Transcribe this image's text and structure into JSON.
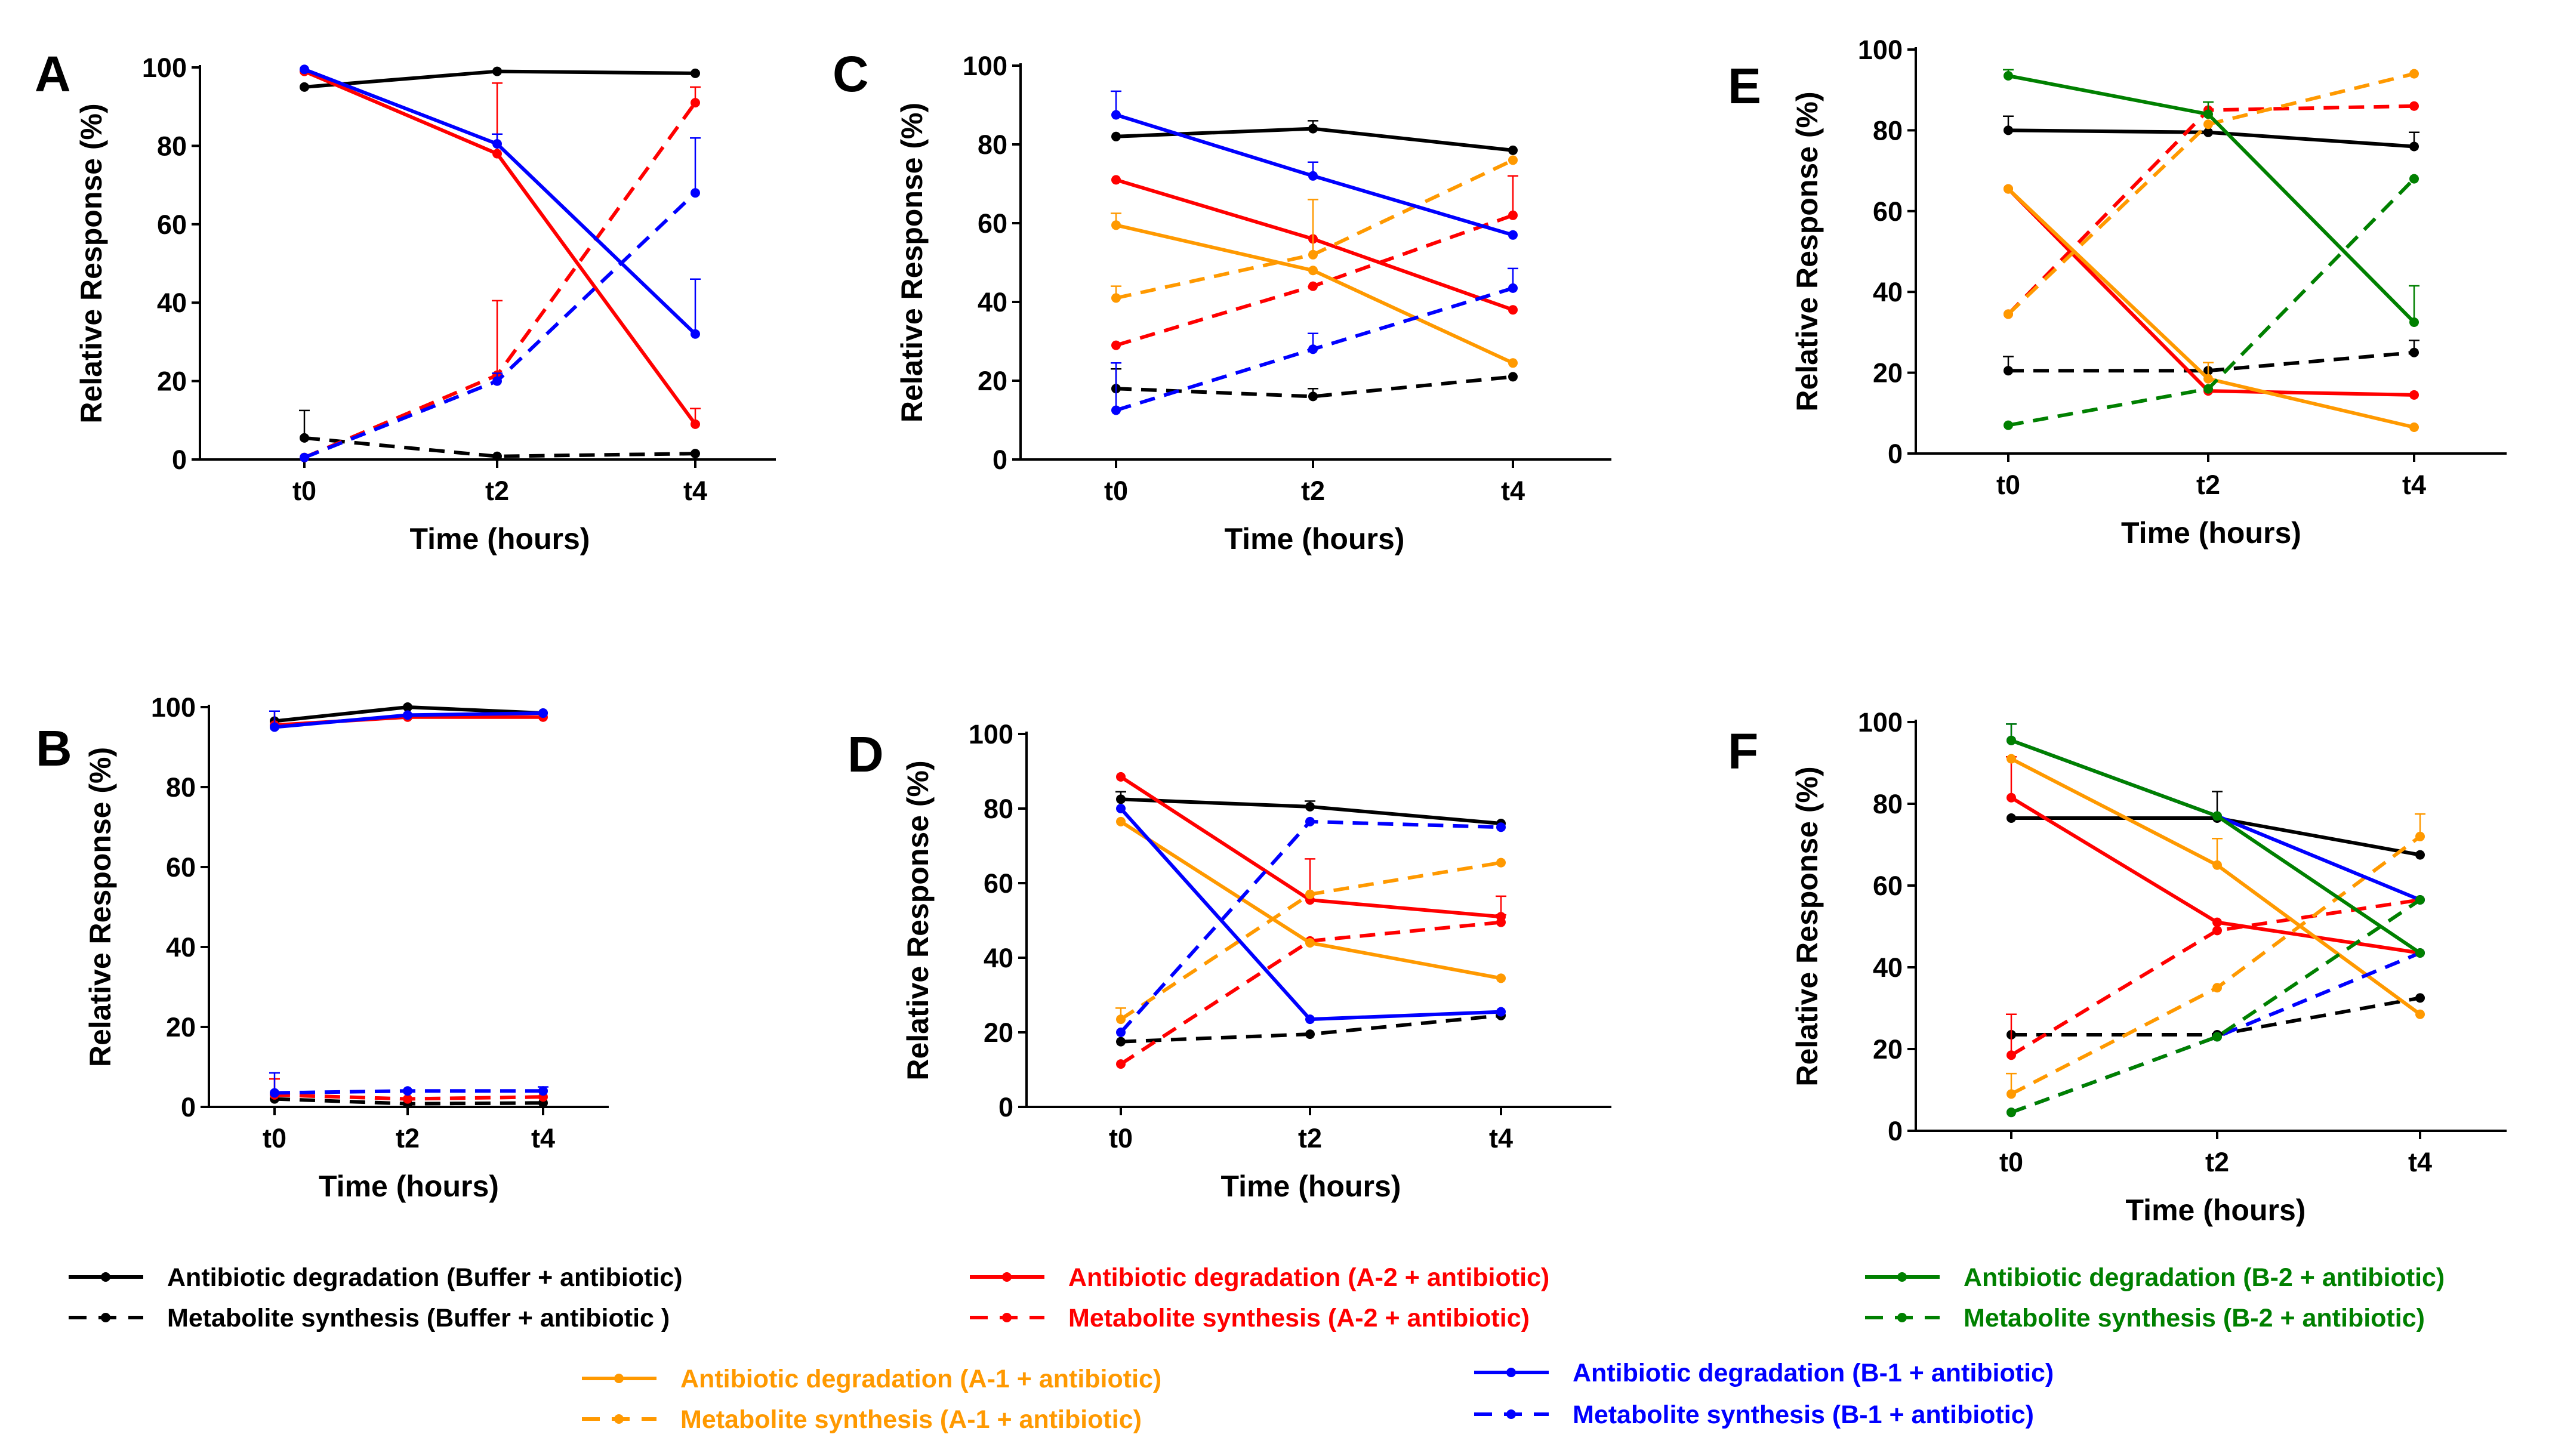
{
  "figure": {
    "legend": [
      {
        "series": "buf_deg",
        "label": "Antibiotic degradation (Buffer + antibiotic)",
        "color": "#000000",
        "dashed": false
      },
      {
        "series": "buf_met",
        "label": "Metabolite synthesis (Buffer + antibiotic )",
        "color": "#000000",
        "dashed": true
      },
      {
        "series": "a2_deg",
        "label": "Antibiotic degradation (A-2 + antibiotic)",
        "color": "#ff0000",
        "dashed": false
      },
      {
        "series": "a2_met",
        "label": "Metabolite synthesis (A-2 + antibiotic)",
        "color": "#ff0000",
        "dashed": true
      },
      {
        "series": "b2_deg",
        "label": "Antibiotic degradation (B-2 + antibiotic)",
        "color": "#008000",
        "dashed": false
      },
      {
        "series": "b2_met",
        "label": "Metabolite synthesis (B-2 + antibiotic)",
        "color": "#008000",
        "dashed": true
      },
      {
        "series": "a1_deg",
        "label": "Antibiotic degradation (A-1 + antibiotic)",
        "color": "#ff9900",
        "dashed": false
      },
      {
        "series": "a1_met",
        "label": "Metabolite synthesis (A-1 + antibiotic)",
        "color": "#ff9900",
        "dashed": true
      },
      {
        "series": "b1_deg",
        "label": "Antibiotic degradation (B-1 + antibiotic)",
        "color": "#0000ff",
        "dashed": false
      },
      {
        "series": "b1_met",
        "label": "Metabolite synthesis (B-1 + antibiotic)",
        "color": "#0000ff",
        "dashed": true
      }
    ]
  },
  "chart_data": [
    {
      "panel": "A",
      "type": "line",
      "categories": [
        "t0",
        "t2",
        "t4"
      ],
      "xlabel": "Time (hours)",
      "ylabel": "Relative Response (%)",
      "ylim": [
        0,
        100
      ],
      "yticks": [
        "0",
        "20",
        "40",
        "60",
        "80",
        "100"
      ],
      "series": [
        {
          "key": "buf_deg",
          "color": "#000000",
          "dashed": false,
          "values": [
            95,
            99,
            98.5
          ],
          "errors": [
            0,
            0,
            0
          ]
        },
        {
          "key": "buf_met",
          "color": "#000000",
          "dashed": true,
          "values": [
            5.5,
            0.8,
            1.5
          ],
          "errors": [
            7,
            0,
            0
          ]
        },
        {
          "key": "a2_deg",
          "color": "#ff0000",
          "dashed": false,
          "values": [
            99,
            78,
            9
          ],
          "errors": [
            0,
            18,
            4
          ]
        },
        {
          "key": "a2_met",
          "color": "#ff0000",
          "dashed": true,
          "values": [
            0.5,
            21.5,
            91
          ],
          "errors": [
            0,
            19,
            4
          ]
        },
        {
          "key": "b1_deg",
          "color": "#0000ff",
          "dashed": false,
          "values": [
            99.5,
            80.5,
            32
          ],
          "errors": [
            0,
            2.5,
            14
          ]
        },
        {
          "key": "b1_met",
          "color": "#0000ff",
          "dashed": true,
          "values": [
            0.5,
            20,
            68
          ],
          "errors": [
            0,
            2,
            14
          ]
        }
      ]
    },
    {
      "panel": "B",
      "type": "line",
      "categories": [
        "t0",
        "t2",
        "t4"
      ],
      "xlabel": "Time (hours)",
      "ylabel": "Relative Response (%)",
      "ylim": [
        0,
        100
      ],
      "yticks": [
        "0",
        "20",
        "40",
        "60",
        "80",
        "100"
      ],
      "series": [
        {
          "key": "buf_deg",
          "color": "#000000",
          "dashed": false,
          "values": [
            96.5,
            100,
            98.5
          ],
          "errors": [
            0,
            0,
            0
          ]
        },
        {
          "key": "buf_met",
          "color": "#000000",
          "dashed": true,
          "values": [
            2,
            0.8,
            1
          ],
          "errors": [
            0,
            0,
            0
          ]
        },
        {
          "key": "a2_deg",
          "color": "#ff0000",
          "dashed": false,
          "values": [
            95.5,
            97.5,
            97.5
          ],
          "errors": [
            3.5,
            0,
            0
          ]
        },
        {
          "key": "a2_met",
          "color": "#ff0000",
          "dashed": true,
          "values": [
            3,
            2,
            2.5
          ],
          "errors": [
            4,
            0,
            0
          ]
        },
        {
          "key": "b1_deg",
          "color": "#0000ff",
          "dashed": false,
          "values": [
            95,
            98,
            98.5
          ],
          "errors": [
            4,
            0,
            0
          ]
        },
        {
          "key": "b1_met",
          "color": "#0000ff",
          "dashed": true,
          "values": [
            3.5,
            4,
            4
          ],
          "errors": [
            5,
            0,
            1
          ]
        }
      ]
    },
    {
      "panel": "C",
      "type": "line",
      "categories": [
        "t0",
        "t2",
        "t4"
      ],
      "xlabel": "Time (hours)",
      "ylabel": "Relative Response (%)",
      "ylim": [
        0,
        100
      ],
      "yticks": [
        "0",
        "20",
        "40",
        "60",
        "80",
        "100"
      ],
      "series": [
        {
          "key": "buf_deg",
          "color": "#000000",
          "dashed": false,
          "values": [
            82,
            84,
            78.5
          ],
          "errors": [
            0,
            2,
            0
          ]
        },
        {
          "key": "buf_met",
          "color": "#000000",
          "dashed": true,
          "values": [
            18,
            16,
            21
          ],
          "errors": [
            5,
            2,
            0
          ]
        },
        {
          "key": "a2_deg",
          "color": "#ff0000",
          "dashed": false,
          "values": [
            71,
            56,
            38
          ],
          "errors": [
            0,
            0,
            0
          ]
        },
        {
          "key": "a2_met",
          "color": "#ff0000",
          "dashed": true,
          "values": [
            29,
            44,
            62
          ],
          "errors": [
            0,
            0,
            10
          ]
        },
        {
          "key": "a1_deg",
          "color": "#ff9900",
          "dashed": false,
          "values": [
            59.5,
            48,
            24.5
          ],
          "errors": [
            3,
            0,
            0
          ]
        },
        {
          "key": "a1_met",
          "color": "#ff9900",
          "dashed": true,
          "values": [
            41,
            52,
            76
          ],
          "errors": [
            3,
            14,
            0
          ]
        },
        {
          "key": "b1_deg",
          "color": "#0000ff",
          "dashed": false,
          "values": [
            87.5,
            72,
            57
          ],
          "errors": [
            6,
            3.5,
            0
          ]
        },
        {
          "key": "b1_met",
          "color": "#0000ff",
          "dashed": true,
          "values": [
            12.5,
            28,
            43.5
          ],
          "errors": [
            12,
            4,
            5
          ]
        }
      ]
    },
    {
      "panel": "D",
      "type": "line",
      "categories": [
        "t0",
        "t2",
        "t4"
      ],
      "xlabel": "Time (hours)",
      "ylabel": "Relative Response (%)",
      "ylim": [
        0,
        100
      ],
      "yticks": [
        "0",
        "20",
        "40",
        "60",
        "80",
        "100"
      ],
      "series": [
        {
          "key": "buf_deg",
          "color": "#000000",
          "dashed": false,
          "values": [
            82.5,
            80.5,
            76
          ],
          "errors": [
            2,
            1.5,
            0
          ]
        },
        {
          "key": "buf_met",
          "color": "#000000",
          "dashed": true,
          "values": [
            17.5,
            19.5,
            24.5
          ],
          "errors": [
            0,
            0,
            0
          ]
        },
        {
          "key": "a2_deg",
          "color": "#ff0000",
          "dashed": false,
          "values": [
            88.5,
            55.5,
            51
          ],
          "errors": [
            0,
            11,
            5.5
          ]
        },
        {
          "key": "a2_met",
          "color": "#ff0000",
          "dashed": true,
          "values": [
            11.5,
            44.5,
            49.5
          ],
          "errors": [
            0,
            0,
            2
          ]
        },
        {
          "key": "a1_deg",
          "color": "#ff9900",
          "dashed": false,
          "values": [
            76.5,
            44,
            34.5
          ],
          "errors": [
            0,
            0,
            0
          ]
        },
        {
          "key": "a1_met",
          "color": "#ff9900",
          "dashed": true,
          "values": [
            23.5,
            57,
            65.5
          ],
          "errors": [
            3,
            0,
            0
          ]
        },
        {
          "key": "b1_deg",
          "color": "#0000ff",
          "dashed": false,
          "values": [
            80,
            23.5,
            25.5
          ],
          "errors": [
            0,
            0,
            0
          ]
        },
        {
          "key": "b1_met",
          "color": "#0000ff",
          "dashed": true,
          "values": [
            20,
            76.5,
            75
          ],
          "errors": [
            0,
            0,
            0
          ]
        }
      ]
    },
    {
      "panel": "E",
      "type": "line",
      "categories": [
        "t0",
        "t2",
        "t4"
      ],
      "xlabel": "Time (hours)",
      "ylabel": "Relative Response (%)",
      "ylim": [
        0,
        100
      ],
      "yticks": [
        "0",
        "20",
        "40",
        "60",
        "80",
        "100"
      ],
      "series": [
        {
          "key": "buf_deg",
          "color": "#000000",
          "dashed": false,
          "values": [
            80,
            79.5,
            76
          ],
          "errors": [
            3.5,
            0,
            3.5
          ]
        },
        {
          "key": "buf_met",
          "color": "#000000",
          "dashed": true,
          "values": [
            20.5,
            20.5,
            25
          ],
          "errors": [
            3.5,
            0,
            3
          ]
        },
        {
          "key": "a2_deg",
          "color": "#ff0000",
          "dashed": false,
          "values": [
            65.5,
            15.5,
            14.5
          ],
          "errors": [
            0,
            0,
            0
          ]
        },
        {
          "key": "a2_met",
          "color": "#ff0000",
          "dashed": true,
          "values": [
            34.5,
            85,
            86
          ],
          "errors": [
            0,
            0,
            0
          ]
        },
        {
          "key": "a1_deg",
          "color": "#ff9900",
          "dashed": false,
          "values": [
            65.5,
            18.5,
            6.5
          ],
          "errors": [
            0,
            4,
            0
          ]
        },
        {
          "key": "a1_met",
          "color": "#ff9900",
          "dashed": true,
          "values": [
            34.5,
            81.5,
            94
          ],
          "errors": [
            0,
            0,
            0
          ]
        },
        {
          "key": "b2_deg",
          "color": "#008000",
          "dashed": false,
          "values": [
            93.5,
            84,
            32.5
          ],
          "errors": [
            1.5,
            3,
            9
          ]
        },
        {
          "key": "b2_met",
          "color": "#008000",
          "dashed": true,
          "values": [
            7,
            16,
            68
          ],
          "errors": [
            0,
            0,
            0
          ]
        }
      ]
    },
    {
      "panel": "F",
      "type": "line",
      "categories": [
        "t0",
        "t2",
        "t4"
      ],
      "xlabel": "Time (hours)",
      "ylabel": "Relative Response (%)",
      "ylim": [
        0,
        100
      ],
      "yticks": [
        "0",
        "20",
        "40",
        "60",
        "80",
        "100"
      ],
      "series": [
        {
          "key": "buf_deg",
          "color": "#000000",
          "dashed": false,
          "values": [
            76.5,
            76.5,
            67.5
          ],
          "errors": [
            0,
            6.5,
            0
          ]
        },
        {
          "key": "buf_met",
          "color": "#000000",
          "dashed": true,
          "values": [
            23.5,
            23.5,
            32.5
          ],
          "errors": [
            0,
            0,
            0
          ]
        },
        {
          "key": "a2_deg",
          "color": "#ff0000",
          "dashed": false,
          "values": [
            81.5,
            51,
            43.5
          ],
          "errors": [
            10,
            0,
            0
          ]
        },
        {
          "key": "a2_met",
          "color": "#ff0000",
          "dashed": true,
          "values": [
            18.5,
            49,
            56.5
          ],
          "errors": [
            10,
            0,
            0
          ]
        },
        {
          "key": "a1_deg",
          "color": "#ff9900",
          "dashed": false,
          "values": [
            91,
            65,
            28.5
          ],
          "errors": [
            0,
            6.5,
            0
          ]
        },
        {
          "key": "a1_met",
          "color": "#ff9900",
          "dashed": true,
          "values": [
            9,
            35,
            72
          ],
          "errors": [
            5,
            0,
            5.5
          ]
        },
        {
          "key": "b1_deg",
          "color": "#0000ff",
          "dashed": false,
          "values": [
            95.5,
            77,
            56.5
          ],
          "errors": [
            4,
            0,
            0
          ]
        },
        {
          "key": "b1_met",
          "color": "#0000ff",
          "dashed": true,
          "values": [
            4.5,
            23,
            43.5
          ],
          "errors": [
            0,
            0,
            0
          ]
        },
        {
          "key": "b2_deg",
          "color": "#008000",
          "dashed": false,
          "values": [
            95.5,
            77,
            43.5
          ],
          "errors": [
            4,
            0,
            0
          ]
        },
        {
          "key": "b2_met",
          "color": "#008000",
          "dashed": true,
          "values": [
            4.5,
            23,
            56.5
          ],
          "errors": [
            0,
            0,
            0
          ]
        }
      ]
    }
  ]
}
